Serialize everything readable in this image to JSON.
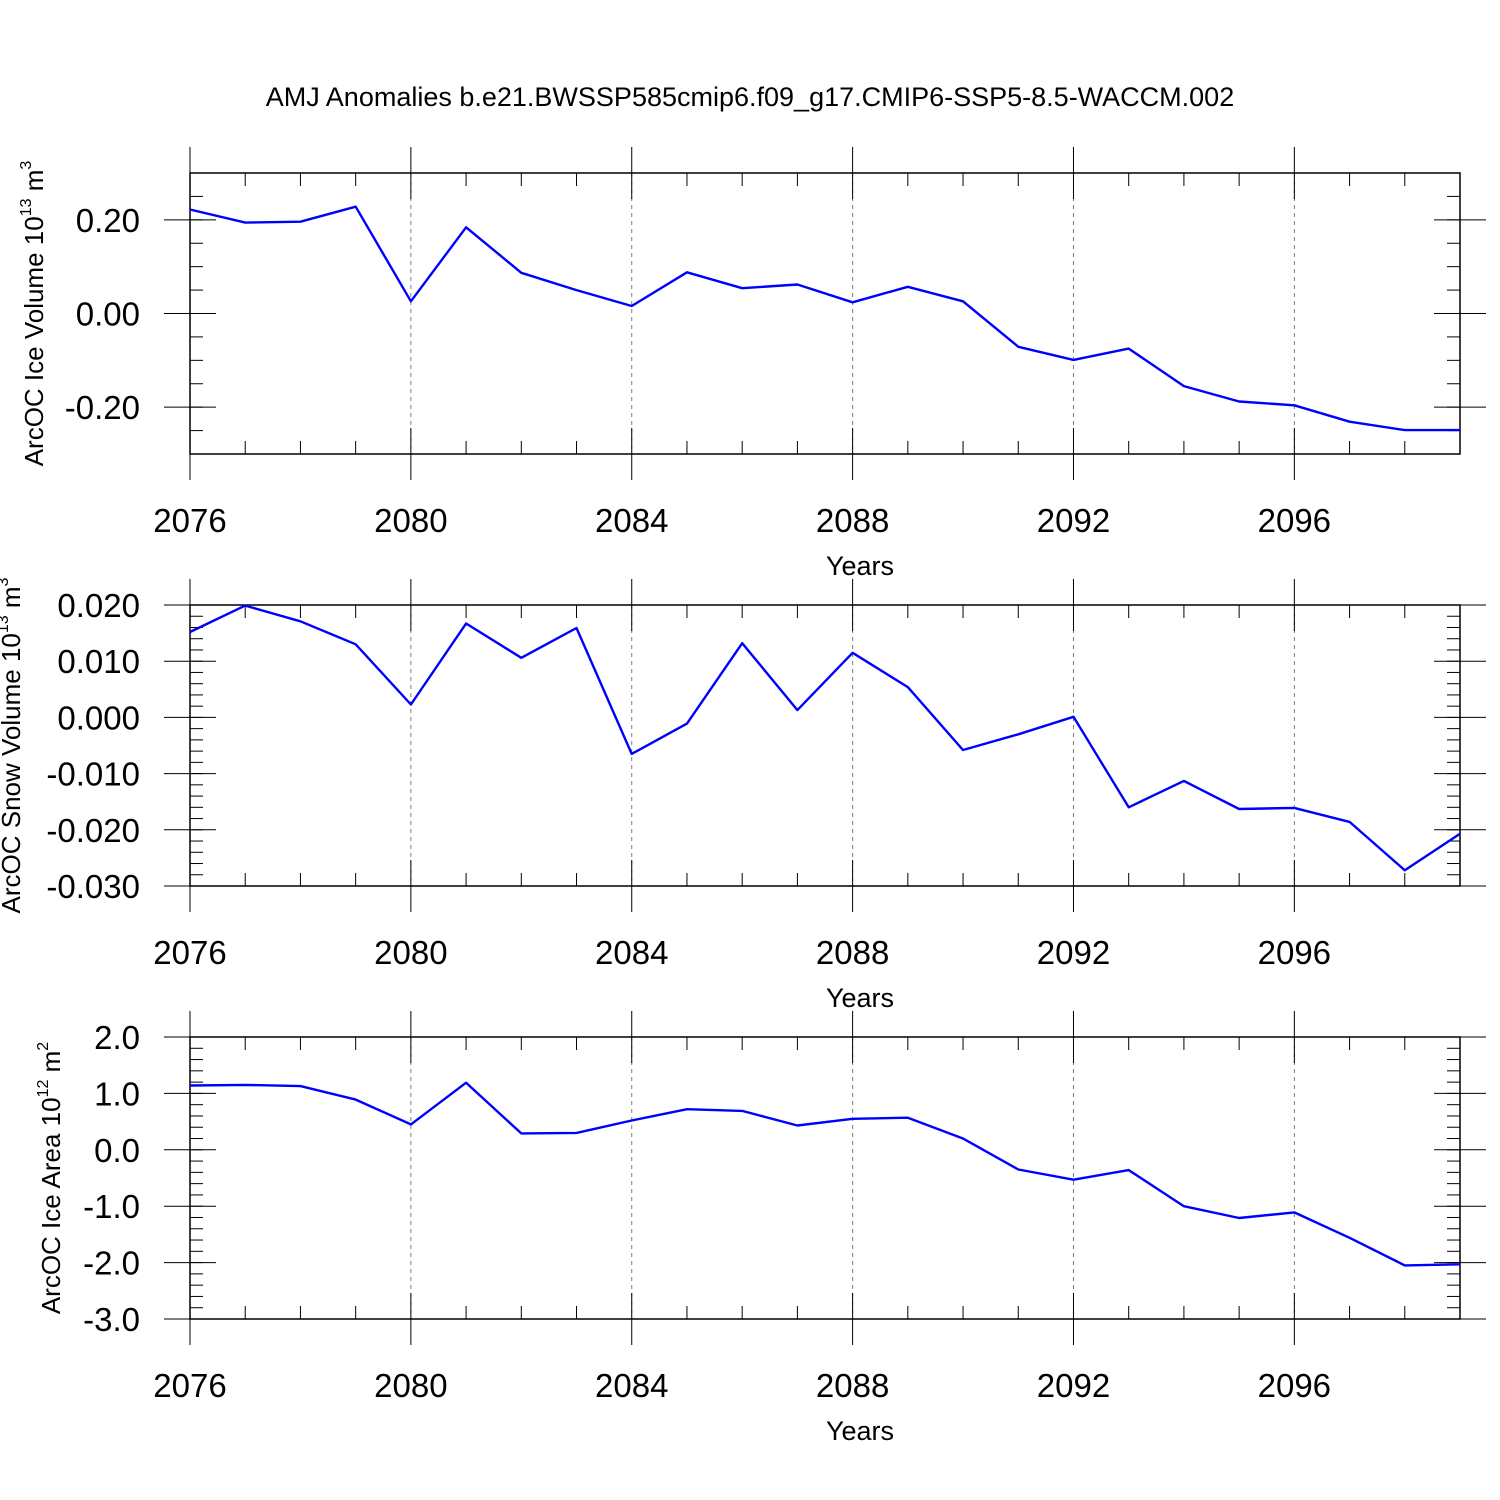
{
  "figure": {
    "title": "AMJ Anomalies b.e21.BWSSP585cmip6.f09_g17.CMIP6-SSP5-8.5-WACCM.002"
  },
  "colors": {
    "line": "#0000ff",
    "axis": "#000000",
    "grid": "#7f7f7f"
  },
  "chart_data": [
    {
      "type": "line",
      "xlabel": "Years",
      "ylabel_main": "ArcOC Ice Volume 10",
      "ylabel_exp": "13",
      "ylabel_unit": " m",
      "ylabel_unit_exp": "3",
      "x": [
        2076,
        2077,
        2078,
        2079,
        2080,
        2081,
        2082,
        2083,
        2084,
        2085,
        2086,
        2087,
        2088,
        2089,
        2090,
        2091,
        2092,
        2093,
        2094,
        2095,
        2096,
        2097,
        2098,
        2099
      ],
      "values": [
        0.222,
        0.194,
        0.196,
        0.228,
        0.026,
        0.184,
        0.087,
        0.05,
        0.016,
        0.088,
        0.054,
        0.062,
        0.024,
        0.057,
        0.026,
        -0.071,
        -0.099,
        -0.075,
        -0.155,
        -0.188,
        -0.196,
        -0.231,
        -0.249,
        -0.249
      ],
      "xlim": [
        2076,
        2099
      ],
      "ylim": [
        -0.3,
        0.3
      ],
      "xticks": [
        2076,
        2080,
        2084,
        2088,
        2092,
        2096
      ],
      "xtick_labels": [
        "2076",
        "2080",
        "2084",
        "2088",
        "2092",
        "2096"
      ],
      "yticks": [
        -0.2,
        0.0,
        0.2
      ],
      "ytick_labels": [
        "-0.20",
        "0.00",
        "0.20"
      ],
      "y_minor_step": 0.05,
      "grid": "vertical dashed at major x ticks"
    },
    {
      "type": "line",
      "xlabel": "Years",
      "ylabel_main": "ArcOC Snow Volume 10",
      "ylabel_exp": "13",
      "ylabel_unit": " m",
      "ylabel_unit_exp": "3",
      "x": [
        2076,
        2077,
        2078,
        2079,
        2080,
        2081,
        2082,
        2083,
        2084,
        2085,
        2086,
        2087,
        2088,
        2089,
        2090,
        2091,
        2092,
        2093,
        2094,
        2095,
        2096,
        2097,
        2098,
        2099
      ],
      "values": [
        0.0152,
        0.0199,
        0.0171,
        0.013,
        0.0023,
        0.0167,
        0.0106,
        0.0159,
        -0.0065,
        -0.0011,
        0.0132,
        0.0013,
        0.0115,
        0.0054,
        -0.0058,
        -0.003,
        0.0001,
        -0.016,
        -0.0113,
        -0.0163,
        -0.0161,
        -0.0186,
        -0.0272,
        -0.0207
      ],
      "xlim": [
        2076,
        2099
      ],
      "ylim": [
        -0.03,
        0.02
      ],
      "xticks": [
        2076,
        2080,
        2084,
        2088,
        2092,
        2096
      ],
      "xtick_labels": [
        "2076",
        "2080",
        "2084",
        "2088",
        "2092",
        "2096"
      ],
      "yticks": [
        -0.03,
        -0.02,
        -0.01,
        0.0,
        0.01,
        0.02
      ],
      "ytick_labels": [
        "-0.030",
        "-0.020",
        "-0.010",
        "0.000",
        "0.010",
        "0.020"
      ],
      "y_minor_step": 0.002,
      "grid": "vertical dashed at major x ticks"
    },
    {
      "type": "line",
      "xlabel": "Years",
      "ylabel_main": "ArcOC Ice Area 10",
      "ylabel_exp": "12",
      "ylabel_unit": " m",
      "ylabel_unit_exp": "2",
      "x": [
        2076,
        2077,
        2078,
        2079,
        2080,
        2081,
        2082,
        2083,
        2084,
        2085,
        2086,
        2087,
        2088,
        2089,
        2090,
        2091,
        2092,
        2093,
        2094,
        2095,
        2096,
        2097,
        2098,
        2099
      ],
      "values": [
        1.14,
        1.15,
        1.13,
        0.89,
        0.45,
        1.19,
        0.29,
        0.3,
        0.52,
        0.72,
        0.69,
        0.43,
        0.55,
        0.57,
        0.2,
        -0.35,
        -0.53,
        -0.36,
        -1.0,
        -1.21,
        -1.11,
        -1.56,
        -2.05,
        -2.03
      ],
      "xlim": [
        2076,
        2099
      ],
      "ylim": [
        -3.0,
        2.0
      ],
      "xticks": [
        2076,
        2080,
        2084,
        2088,
        2092,
        2096
      ],
      "xtick_labels": [
        "2076",
        "2080",
        "2084",
        "2088",
        "2092",
        "2096"
      ],
      "yticks": [
        -3.0,
        -2.0,
        -1.0,
        0.0,
        1.0,
        2.0
      ],
      "ytick_labels": [
        "-3.0",
        "-2.0",
        "-1.0",
        "0.0",
        "1.0",
        "2.0"
      ],
      "y_minor_step": 0.2,
      "grid": "vertical dashed at major x ticks"
    }
  ]
}
